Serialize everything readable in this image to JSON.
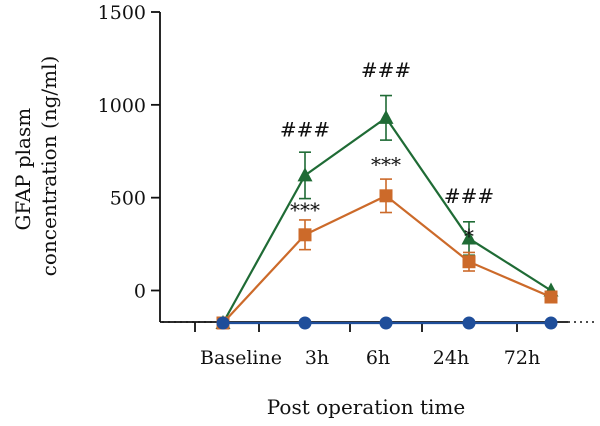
{
  "chart_data": {
    "type": "line",
    "title": "",
    "xlabel": "Post operation time",
    "ylabel_lines": [
      "GFAP plasm",
      "concentration (ng/ml)"
    ],
    "yticks": [
      0,
      500,
      1000,
      1500
    ],
    "ylim": [
      -180,
      1500
    ],
    "categories": [
      "Baseline",
      "3h",
      "6h",
      "24h",
      "72h"
    ],
    "series": [
      {
        "color": "#1f6b35",
        "marker": "triangle",
        "x": [
          "Baseline",
          "3h",
          "6h",
          "24h",
          "72h"
        ],
        "values": [
          -175,
          620,
          930,
          280,
          0
        ],
        "errors": [
          0,
          125,
          120,
          90,
          0
        ]
      },
      {
        "color": "#cc6a2a",
        "marker": "square",
        "x": [
          "Baseline",
          "3h",
          "6h",
          "24h",
          "72h"
        ],
        "values": [
          -175,
          300,
          510,
          155,
          -35
        ],
        "errors": [
          0,
          80,
          90,
          50,
          0
        ]
      },
      {
        "color": "#1f4e9a",
        "marker": "circle",
        "x": [
          "Baseline",
          "3h",
          "6h",
          "24h",
          "72h"
        ],
        "values": [
          -175,
          -175,
          -175,
          -175,
          -175
        ],
        "errors": [
          0,
          0,
          0,
          0,
          0
        ]
      }
    ],
    "annotations": [
      {
        "text": "###",
        "x": "3h",
        "y": 830
      },
      {
        "text": "###",
        "x": "6h",
        "y": 1150
      },
      {
        "text": "###",
        "x": "24h",
        "y": 470
      },
      {
        "text": "***",
        "x": "3h",
        "y": 395
      },
      {
        "text": "***",
        "x": "6h",
        "y": 640
      },
      {
        "text": "*",
        "x": "24h",
        "y": 255
      }
    ]
  },
  "colors": {
    "axis": "#111111",
    "green": "#1f6b35",
    "orange": "#cc6a2a",
    "blue": "#1f4e9a"
  }
}
